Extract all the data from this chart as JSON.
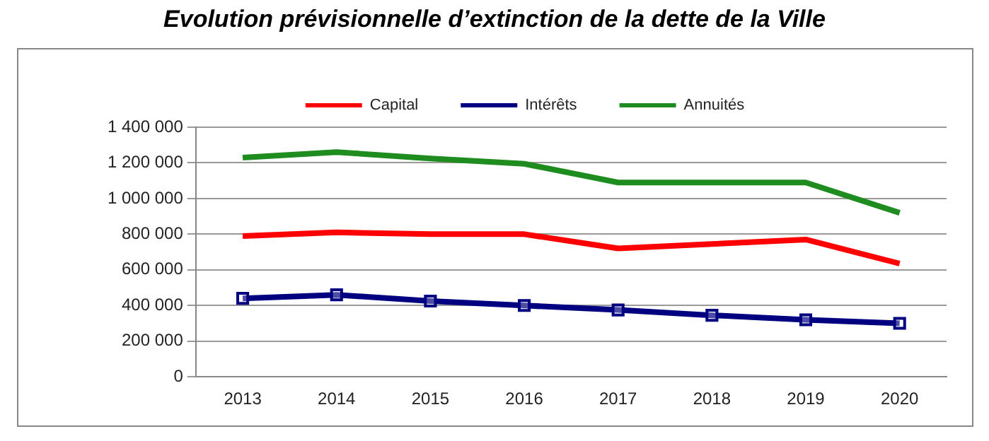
{
  "chart_data": {
    "type": "line",
    "title": "Evolution prévisionnelle d’extinction de la dette de la Ville",
    "categories": [
      "2013",
      "2014",
      "2015",
      "2016",
      "2017",
      "2018",
      "2019",
      "2020"
    ],
    "series": [
      {
        "name": "Capital",
        "color": "#ff0000",
        "marker": "none",
        "values": [
          790000,
          810000,
          800000,
          800000,
          720000,
          745000,
          770000,
          635000
        ]
      },
      {
        "name": "Intérêts",
        "color": "#000080",
        "marker": "square",
        "values": [
          440000,
          460000,
          425000,
          400000,
          375000,
          345000,
          320000,
          300000
        ]
      },
      {
        "name": "Annuités",
        "color": "#1e8c1e",
        "marker": "none",
        "values": [
          1230000,
          1260000,
          1225000,
          1195000,
          1090000,
          1090000,
          1090000,
          920000
        ]
      }
    ],
    "ylim": [
      0,
      1400000
    ],
    "yticks": [
      {
        "value": 0,
        "label": "0"
      },
      {
        "value": 200000,
        "label": "200 000"
      },
      {
        "value": 400000,
        "label": "400 000"
      },
      {
        "value": 600000,
        "label": "600 000"
      },
      {
        "value": 800000,
        "label": "800 000"
      },
      {
        "value": 1000000,
        "label": "1 000 000"
      },
      {
        "value": 1200000,
        "label": "1 200 000"
      },
      {
        "value": 1400000,
        "label": "1 400 000"
      }
    ],
    "grid": "y",
    "legend": "top",
    "line_style": "solid"
  }
}
